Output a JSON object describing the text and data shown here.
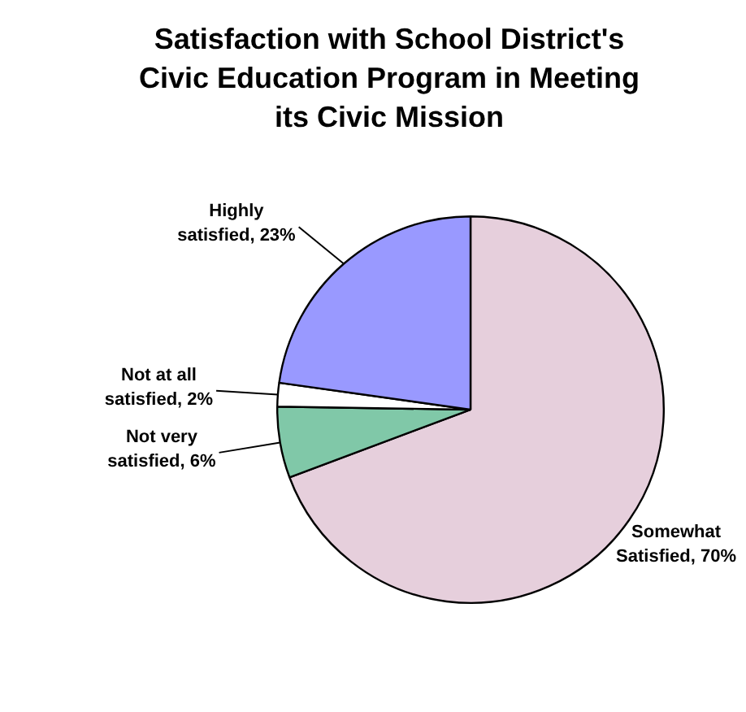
{
  "chart_data": {
    "type": "pie",
    "title": "Satisfaction with School District's Civic Education Program in Meeting its Civic Mission",
    "categories": [
      "Somewhat Satisfied",
      "Not very satisfied",
      "Not at all satisfied",
      "Highly satisfied"
    ],
    "values": [
      70,
      6,
      2,
      23
    ],
    "value_labels": [
      "70%",
      "6%",
      "2%",
      "23%"
    ],
    "colors": [
      "#e6cfdc",
      "#80c8a8",
      "#ffffff",
      "#9999ff"
    ],
    "legend": false
  }
}
